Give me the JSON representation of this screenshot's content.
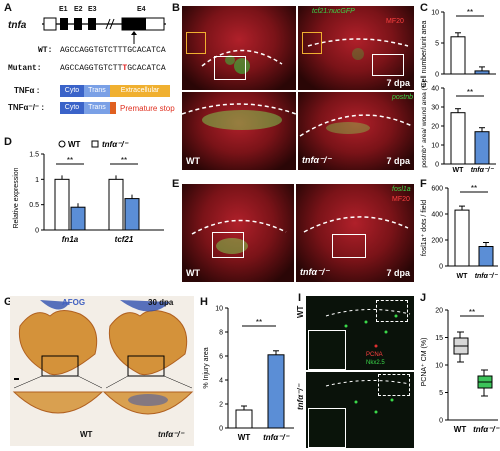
{
  "panels": {
    "A": {
      "letter": "A",
      "gene": "tnfa",
      "exons": [
        "E1",
        "E2",
        "E3",
        "E4"
      ],
      "wt_label": "WT:",
      "wt_seq": "AGCCAGGTGTCTTTGCACATCA",
      "mut_label": "Mutant:",
      "mut_seq_prefix": "AGCCAGGTGTCTT",
      "mut_seq_ins": "T",
      "mut_seq_suffix": "GCACATCA",
      "wt_protein": "TNFα :",
      "mut_protein": "TNFα⁻/⁻ :",
      "domains": [
        "Cyto",
        "Trans",
        "Extracellular"
      ],
      "premature": "Premature stop"
    },
    "B": {
      "letter": "B",
      "top_marker": "tcf21:nucGFP",
      "top_marker2": "MF20",
      "bottom_marker": "postnb",
      "days": "7 dpa",
      "wt": "WT",
      "ko": "tnfα⁻/⁻"
    },
    "C": {
      "letter": "C",
      "ylabel_top": "Cell number/unit area",
      "ylabel_bottom": "postnb⁺ area/ wound area (%)",
      "sig": "**",
      "xcats": [
        "WT",
        "tnfα⁻/⁻"
      ]
    },
    "D": {
      "letter": "D",
      "legend_wt": "WT",
      "legend_ko": "tnfα⁻/⁻",
      "ylabel": "Relative expression",
      "sig": "**"
    },
    "E": {
      "letter": "E",
      "marker1": "fosl1a",
      "marker2": "MF20",
      "days": "7 dpa",
      "wt": "WT",
      "ko": "tnfα⁻/⁻"
    },
    "F": {
      "letter": "F",
      "ylabel": "fosl1a⁺ dots / field",
      "sig": "**"
    },
    "G": {
      "letter": "G",
      "stain": "AFOG",
      "days": "30 dpa",
      "wt": "WT",
      "ko": "tnfα⁻/⁻"
    },
    "H": {
      "letter": "H",
      "ylabel": "% Injury area",
      "sig": "**"
    },
    "I": {
      "letter": "I",
      "wt": "WT",
      "ko": "tnfα⁻/⁻",
      "marker1": "PCNA",
      "marker2": "Nkx2.5"
    },
    "J": {
      "letter": "J",
      "ylabel": "PCNA⁺ CM (%)",
      "sig": "**"
    }
  },
  "colors": {
    "wt_bar": "#ffffff",
    "ko_bar": "#5b8ed6",
    "cyto": "#3a63c9",
    "trans": "#7aa0e6",
    "extracellular": "#f0b030",
    "stop": "#e06020",
    "wt_box": "#d8d8d8",
    "ko_box": "#3cc35a"
  },
  "chart_data": [
    {
      "panel": "C-top",
      "type": "bar",
      "categories": [
        "WT",
        "tnfα⁻/⁻"
      ],
      "values": [
        6.0,
        0.5
      ],
      "ylim": [
        0,
        10
      ],
      "yticks": [
        0,
        5,
        10
      ]
    },
    {
      "panel": "C-bottom",
      "type": "bar",
      "categories": [
        "WT",
        "tnfα⁻/⁻"
      ],
      "values": [
        27,
        17
      ],
      "ylim": [
        0,
        40
      ],
      "yticks": [
        0,
        10,
        20,
        30,
        40
      ]
    },
    {
      "panel": "D",
      "type": "bar",
      "categories": [
        "fn1a",
        "tcf21"
      ],
      "series": [
        {
          "name": "WT",
          "values": [
            1.0,
            1.0
          ]
        },
        {
          "name": "tnfα⁻/⁻",
          "values": [
            0.45,
            0.62
          ]
        }
      ],
      "ylim": [
        0,
        1.5
      ],
      "yticks": [
        0.0,
        0.5,
        1.0,
        1.5
      ]
    },
    {
      "panel": "F",
      "type": "bar",
      "categories": [
        "WT",
        "tnfα⁻/⁻"
      ],
      "values": [
        430,
        150
      ],
      "ylim": [
        0,
        600
      ],
      "yticks": [
        0,
        200,
        400,
        600
      ]
    },
    {
      "panel": "H",
      "type": "bar",
      "categories": [
        "WT",
        "tnfα⁻/⁻"
      ],
      "values": [
        1.5,
        6.1
      ],
      "ylim": [
        0,
        10
      ],
      "yticks": [
        0,
        2,
        4,
        6,
        8,
        10
      ]
    },
    {
      "panel": "J",
      "type": "box",
      "categories": [
        "WT",
        "tnfα⁻/⁻"
      ],
      "ylim": [
        0,
        20
      ],
      "yticks": [
        0,
        5,
        10,
        15,
        20
      ]
    }
  ]
}
